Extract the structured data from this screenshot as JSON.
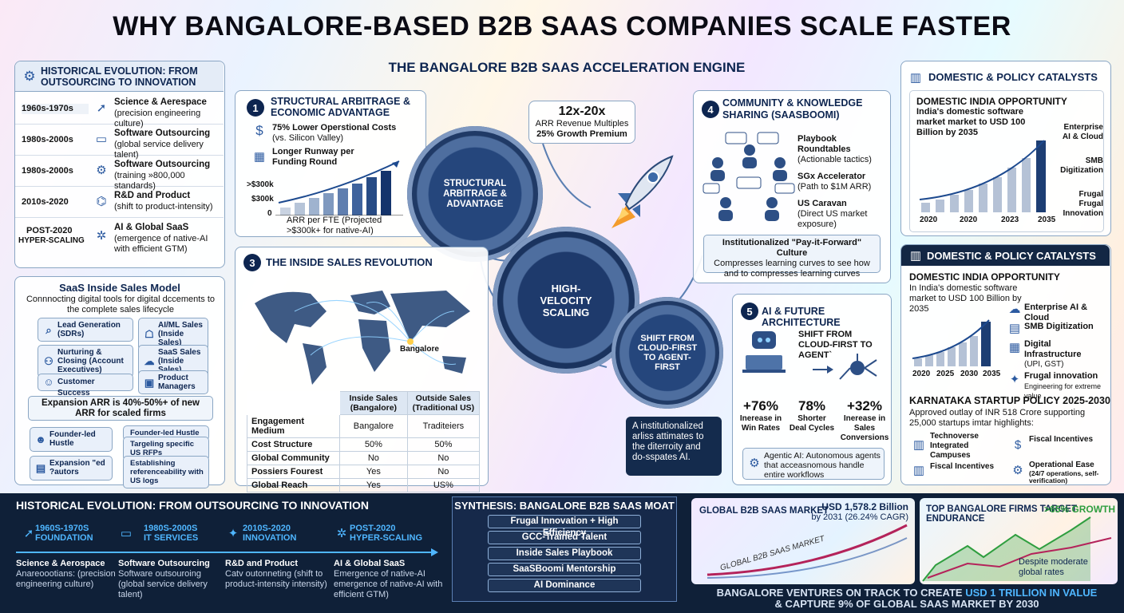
{
  "title": "WHY BANGALORE-BASED B2B SAAS COMPANIES SCALE FASTER",
  "engine_title": "THE BANGALORE B2B SAAS ACCELERATION ENGINE",
  "hist": {
    "title": "HISTORICAL EVOLUTION: FROM OUTSOURCING TO INNOVATION",
    "rows": [
      {
        "period": "1960s-1970s",
        "title": "Science & Aerespace",
        "desc": "(precision engineering culture)"
      },
      {
        "period": "1980s-2000s",
        "title": "Software Outsourcing",
        "desc": "(global service delivery talent)"
      },
      {
        "period": "1980s-2000s",
        "title": "Software Outsourcing",
        "desc": "(training »800,000 standards)"
      },
      {
        "period": "2010s-2020",
        "title": "R&D and Product",
        "desc": "(shift to product-intensity)"
      },
      {
        "period": "POST-2020",
        "period2": "HYPER-SCALING",
        "title": "AI & Global SaaS",
        "desc": "(emergence of native-AI with efficient GTM)"
      }
    ]
  },
  "model": {
    "title": "SaaS Inside Sales Model",
    "subtitle": "Connnocting digital tools for digital dccements to the complete sales lifecycle",
    "chips": [
      "Lead Generation (SDRs)",
      "AI/ML Sales (Inside Sales)",
      "Nurturing & Closing (Account Executives)",
      "SaaS Sales (Inside Sales)",
      "Customer Success",
      "Product Managers"
    ],
    "expansion": "Expansion ARR is 40%-50%+ of new ARR for scaled firms",
    "chips2": [
      "Founder-led Hustle",
      "Founder-led Hustle",
      "Targeling specific US RFPs",
      "Expansion \"ed ?autors",
      "Establishing referenceability with US logs"
    ]
  },
  "s1": {
    "num": "1",
    "title": "STRUCTURAL ARBITRAGE & ECONOMIC ADVANTAGE",
    "p1": "75% Lower Operstional Costs",
    "p1s": "(vs. Silicon Valley)",
    "p2": "Longer Runway per Funding Round",
    "y1": ">$300k",
    "y2": "$300k",
    "y3": "0",
    "cap": "ARR per FTE (Projected >$300k+ for native-AI)"
  },
  "multiples": {
    "big": "12x-20x",
    "l1": "ARR Revenue Multiples",
    "l2": "25% Growth Premium"
  },
  "gears": {
    "g1": "STRUCTURAL ARBITRAGE & ADVANTAGE",
    "g2": "HIGH-VELOCITY SCALING",
    "g3": "SHIFT FROM CLOUD-FIRST TO AGENT-FIRST"
  },
  "s3": {
    "num": "3",
    "title": "THE INSIDE SALES REVOLUTION",
    "city": "Bangalore",
    "headers": [
      "",
      "Inside Sales (Bangalore)",
      "Outside Sales (Traditional US)"
    ],
    "rows": [
      [
        "Engagement Medium",
        "Bangalore",
        "Traditeiers"
      ],
      [
        "Cost Structure",
        "50%",
        "50%"
      ],
      [
        "Global Community",
        "No",
        "No"
      ],
      [
        "Possiers Fourest",
        "Yes",
        "No"
      ],
      [
        "Global Reach",
        "Yes",
        "US%"
      ]
    ]
  },
  "s4": {
    "num": "4",
    "title": "COMMUNITY & KNOWLEDGE SHARING (SaaSBoomi)",
    "items": [
      {
        "t": "Playbook Roundtables",
        "d": "(Actionable tactics)"
      },
      {
        "t": "SGx Accelerator",
        "d": "(Path to $1M ARR)"
      },
      {
        "t": "US Caravan",
        "d": "(Direct US market exposure)"
      }
    ],
    "culture": "Institutionalized \"Pay-it-Forward\" Culture",
    "culture2": "Compresses learning curves to see how and to compresses learning curves"
  },
  "s5": {
    "num": "5",
    "title": "AI & FUTURE ARCHITECTURE",
    "shift": "SHIFT FROM CLOUD-FIRST TO AGENT`",
    "stats": [
      {
        "v": "+76%",
        "l": "Inerease in Win Rates"
      },
      {
        "v": "78%",
        "l": "Shorter Deal Cycles"
      },
      {
        "v": "+32%",
        "l": "Inerease in Sales Conversions"
      }
    ],
    "agentic": "Agentic AI: Autonomous agents that acceasnomous handle entire workflows"
  },
  "callout": "A institutionalized arliss attimates to the diterroity and do-sspates AI.",
  "dom1": {
    "title": "DOMESTIC & POLICY CATALYSTS",
    "sub": "DOMESTIC INDIA OPPORTUNITY",
    "desc": "India's domestic software market market to USD 100 Billion by 2035",
    "labels": [
      "Enterprise AI & Cloud",
      "SMB Digitization",
      "Frugal Frugal Innovation"
    ],
    "years": [
      "2020",
      "2020",
      "2023",
      "2035"
    ]
  },
  "dom2": {
    "title": "DOMESTIC & POLICY CATALYSTS",
    "sub": "DOMESTIC INDIA OPPORTUNITY",
    "desc": "In  India's domestic software market to USD 100 Billion by 2035",
    "items": [
      {
        "t": "Enterprise AI & Cloud",
        "d": ""
      },
      {
        "t": "SMB Digitization",
        "d": ""
      },
      {
        "t": "Digital Infrastructure",
        "d": "(UPI, GST)"
      },
      {
        "t": "Frugal innovation",
        "d": "Engineering for extreme value"
      }
    ],
    "years": [
      "2020",
      "2025",
      "2030",
      "2035"
    ],
    "policy": "KARNATAKA STARTUP POLICY 2025-2030",
    "policy_d": "Approved outlay of INR 518 Crore supporting 25,000 startups imtar highlights:",
    "pitems": [
      {
        "t": "Technoverse Integrated Campuses",
        "d": ""
      },
      {
        "t": "Fiscal Incentives",
        "d": ""
      },
      {
        "t": "Fiscal Incentives",
        "d": ""
      },
      {
        "t": "Operational Ease",
        "d": "(24/7 operations, self-verification)"
      }
    ]
  },
  "timeline": {
    "title": "HISTORICAL EVOLUTION: FROM OUTSOURCING TO INNOVATION",
    "steps": [
      {
        "p": "1960s-1970s",
        "l": "FOUNDATION",
        "t": "Science & Aerospace",
        "d": "Anareoootians: (precision engineering culture)"
      },
      {
        "p": "1980s-2000s",
        "l": "IT SERVICES",
        "t": "Software Outsourcing",
        "d": "Software outsouroing (global service delivery talent)"
      },
      {
        "p": "2010s-2020",
        "l": "INNOVATION",
        "t": "R&D and Product",
        "d": "Catv outonneting (shift to product-intensity intensity)"
      },
      {
        "p": "POST-2020",
        "l": "HYPER-SCALING",
        "t": "AI & Global SaaS",
        "d": "Emergence of native-AI emergence of native-AI with efficient GTM)"
      }
    ]
  },
  "moat": {
    "title": "SYNTHESIS: BANGALORE B2B SAAS MOAT",
    "items": [
      "Frugal Innovation + High Efficiency",
      "GCC-Trained Talent",
      "Inside Sales Playbook",
      "SaaSBoomi Mentorship",
      "AI Dominance"
    ]
  },
  "market": {
    "title": "GLOBAL B2B SAAS MARKET",
    "value": "USD 1,578.2 Billion",
    "value2": "by 2031 (26.24% CAGR)",
    "curve": "GLOBAL B2B SAAS MARKET"
  },
  "firms": {
    "title": "TOP BANGALORE FIRMS TARGET",
    "hl": ">65% GROWTH",
    "sub": "ENDURANCE",
    "note": "Despite moderate global rates"
  },
  "footer": {
    "a": "BANGALORE VENTURES ON TRACK TO CREATE ",
    "hl": "USD 1 TRILLION IN VALUE",
    "b": "& CAPTURE 9% OF GLOBAL SAAS MARKET BY 2030"
  }
}
